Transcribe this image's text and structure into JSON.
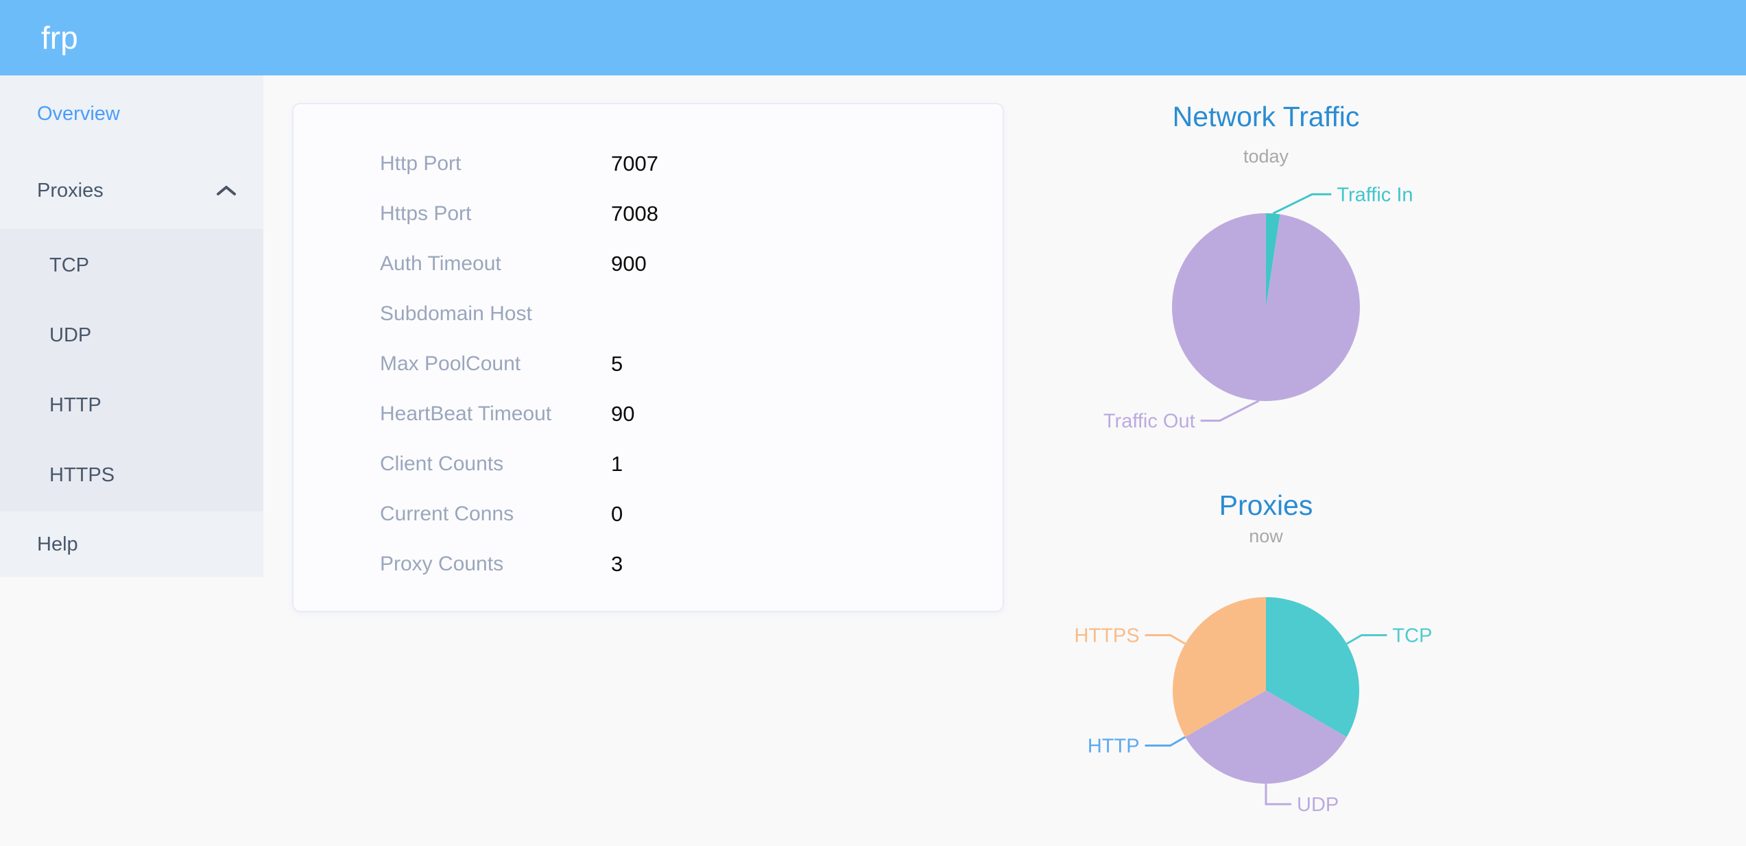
{
  "header": {
    "logo": "frp"
  },
  "sidebar": {
    "items": [
      {
        "label": "Overview",
        "type": "link",
        "active": true
      },
      {
        "label": "Proxies",
        "type": "submenu",
        "expanded": true,
        "children": [
          {
            "label": "TCP"
          },
          {
            "label": "UDP"
          },
          {
            "label": "HTTP"
          },
          {
            "label": "HTTPS"
          }
        ]
      },
      {
        "label": "Help",
        "type": "link",
        "active": false
      }
    ]
  },
  "server_info": {
    "rows": [
      {
        "label": "Http Port",
        "value": "7007"
      },
      {
        "label": "Https Port",
        "value": "7008"
      },
      {
        "label": "Auth Timeout",
        "value": "900"
      },
      {
        "label": "Subdomain Host",
        "value": ""
      },
      {
        "label": "Max PoolCount",
        "value": "5"
      },
      {
        "label": "HeartBeat Timeout",
        "value": "90"
      },
      {
        "label": "Client Counts",
        "value": "1"
      },
      {
        "label": "Current Conns",
        "value": "0"
      },
      {
        "label": "Proxy Counts",
        "value": "3"
      }
    ]
  },
  "chart_data": [
    {
      "type": "pie",
      "title": "Network Traffic",
      "subtitle": "today",
      "legend": "none",
      "series": [
        {
          "name": "Traffic In",
          "percent": 2.4,
          "color": "#41c6c8"
        },
        {
          "name": "Traffic Out",
          "percent": 97.6,
          "color": "#bcaade"
        }
      ]
    },
    {
      "type": "pie",
      "title": "Proxies",
      "subtitle": "now",
      "legend": "none",
      "series": [
        {
          "name": "TCP",
          "value": 1,
          "color": "#4dcbce"
        },
        {
          "name": "UDP",
          "value": 1,
          "color": "#bcaade"
        },
        {
          "name": "HTTP",
          "value": 0,
          "color": "#5aa9ee"
        },
        {
          "name": "HTTPS",
          "value": 1,
          "color": "#fabc86"
        }
      ]
    }
  ],
  "colors": {
    "header_bg": "#6dbcfa",
    "sidebar_bg": "#eef1f6",
    "submenu_bg": "#e7eaf1",
    "menu_text": "#48576a",
    "active_menu_text": "#4a9ef9",
    "card_border": "#e8ebf7",
    "info_label": "#9aa6bc",
    "info_value": "#0b0b0b",
    "chart_title": "#2a8cd2",
    "chart_subtitle": "#a8a8a8"
  }
}
